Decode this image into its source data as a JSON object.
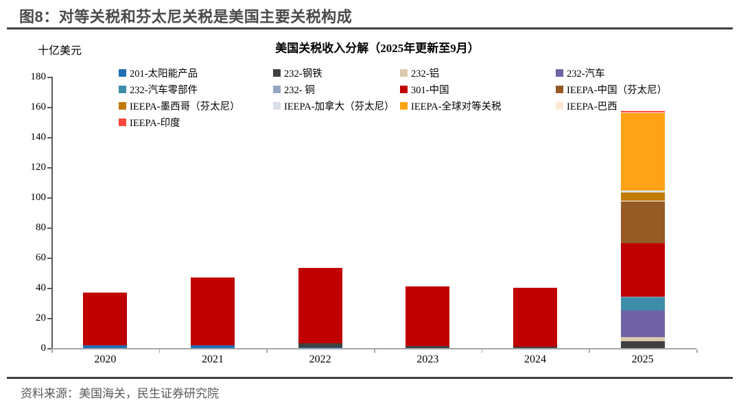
{
  "page": {
    "figure_title": "图8：对等关税和芬太尼关税是美国主要关税构成",
    "source_text": "资料来源：美国海关，民生证券研究院"
  },
  "chart_data": {
    "type": "bar",
    "stacked": true,
    "title": "美国关税收入分解（2025年更新至9月）",
    "ylabel": "十亿美元",
    "xlabel": "",
    "ylim": [
      0,
      180
    ],
    "ytick_step": 20,
    "grid": false,
    "legend_position": "top",
    "categories": [
      "2020",
      "2021",
      "2022",
      "2023",
      "2024",
      "2025"
    ],
    "series": [
      {
        "name": "201-太阳能产品",
        "color": "#1F6FB5",
        "values": [
          2,
          2,
          0.5,
          0,
          0,
          0
        ]
      },
      {
        "name": "232-钢铁",
        "color": "#404040",
        "values": [
          0,
          0,
          2.5,
          1.5,
          1,
          4.5
        ]
      },
      {
        "name": "232-铝",
        "color": "#DCC9AE",
        "values": [
          0,
          0,
          0,
          0,
          0,
          3
        ]
      },
      {
        "name": "232-汽车",
        "color": "#6F63A5",
        "values": [
          0,
          0,
          0,
          0,
          0,
          17.5
        ]
      },
      {
        "name": "232-汽车零部件",
        "color": "#3E8EA9",
        "values": [
          0,
          0,
          0,
          0,
          0,
          8.5
        ]
      },
      {
        "name": "232- 铜",
        "color": "#97A6C4",
        "values": [
          0,
          0,
          0,
          0,
          0,
          0.5
        ]
      },
      {
        "name": "301-中国",
        "color": "#C00000",
        "values": [
          35,
          45,
          50,
          39.5,
          39,
          35.5
        ]
      },
      {
        "name": "IEEPA-中国（芬太尼）",
        "color": "#965A24",
        "values": [
          0,
          0,
          0,
          0,
          0,
          28
        ]
      },
      {
        "name": "IEEPA-墨西哥（芬太尼）",
        "color": "#BF7B06",
        "values": [
          0,
          0,
          0,
          0,
          0,
          5.5
        ]
      },
      {
        "name": "IEEPA-加拿大（芬太尼）",
        "color": "#D9DFE8",
        "values": [
          0,
          0,
          0,
          0,
          0,
          1.5
        ]
      },
      {
        "name": "IEEPA-全球对等关税",
        "color": "#FFA216",
        "values": [
          0,
          0,
          0,
          0,
          0,
          51.5
        ]
      },
      {
        "name": "IEEPA-巴西",
        "color": "#FCE9D2",
        "values": [
          0,
          0,
          0,
          0,
          0,
          0.5
        ]
      },
      {
        "name": "IEEPA-印度",
        "color": "#F9473D",
        "values": [
          0,
          0,
          0,
          0,
          0,
          1
        ]
      }
    ],
    "totals": [
      37,
      47,
      53,
      41,
      40,
      157.5
    ]
  }
}
